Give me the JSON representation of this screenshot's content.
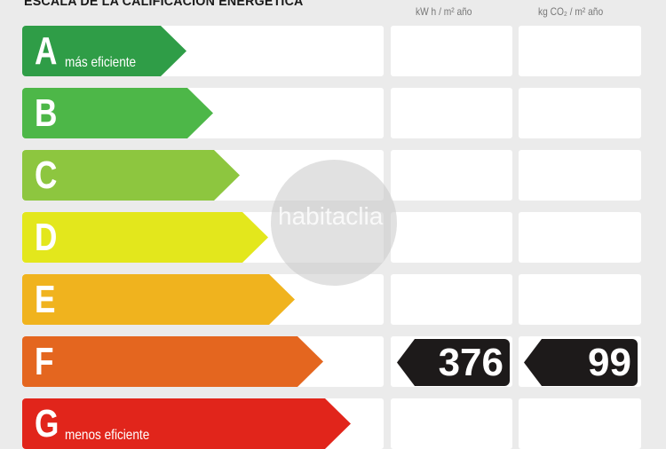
{
  "header": {
    "title": "ESCALA DE LA CALIFICACIÓN ENERGÉTICA",
    "unit_energy": "kW h / m² año",
    "unit_emissions": "kg CO₂ / m² año"
  },
  "ratings": [
    {
      "letter": "A",
      "label": "más eficiente",
      "color": "#2f9d47"
    },
    {
      "letter": "B",
      "label": "",
      "color": "#4db748"
    },
    {
      "letter": "C",
      "label": "",
      "color": "#8dc63f"
    },
    {
      "letter": "D",
      "label": "",
      "color": "#e3e71c"
    },
    {
      "letter": "E",
      "label": "",
      "color": "#f0b31e"
    },
    {
      "letter": "F",
      "label": "",
      "color": "#e4661f"
    },
    {
      "letter": "G",
      "label": "menos eficiente",
      "color": "#e1251b"
    }
  ],
  "result": {
    "rating": "F",
    "energy": "376",
    "emissions": "99"
  },
  "watermark": "habitaclia"
}
